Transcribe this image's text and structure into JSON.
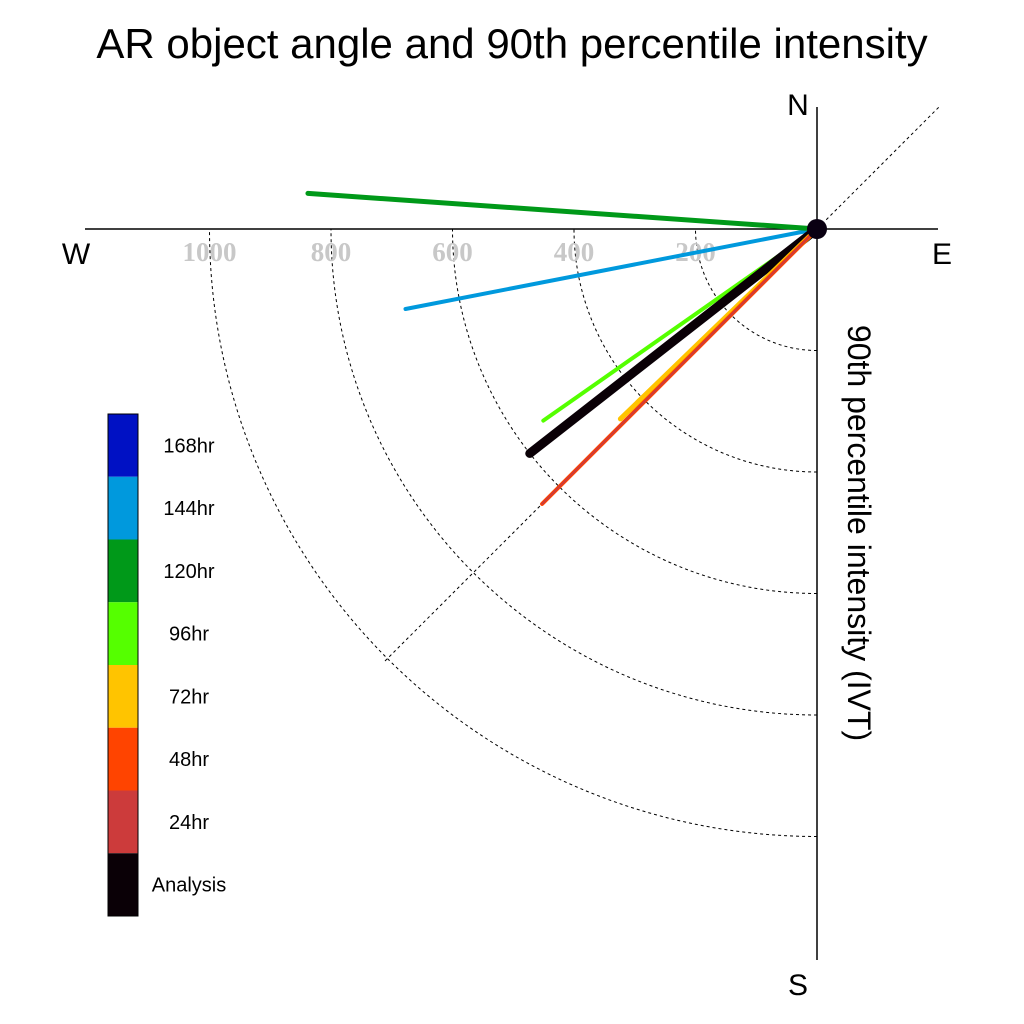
{
  "chart_data": {
    "type": "polar-line",
    "title": "AR object angle and 90th percentile intensity",
    "ylabel": "90th percentile intensity (IVT)",
    "compass": {
      "north": "N",
      "south": "S",
      "east": "E",
      "west": "W"
    },
    "radial_ticks": [
      200,
      400,
      600,
      800,
      1000
    ],
    "radial_tick_labels": [
      "200",
      "400",
      "600",
      "800",
      "1000"
    ],
    "radial_range": [
      0,
      1200
    ],
    "angle_convention": "degrees clockwise from north",
    "series": [
      {
        "name": "144hr",
        "color": "#0099dd",
        "angle_deg": 259,
        "intensity": 690,
        "width": 4
      },
      {
        "name": "120hr",
        "color": "#009919",
        "angle_deg": 274,
        "intensity": 840,
        "width": 5
      },
      {
        "name": "96hr",
        "color": "#55ff00",
        "angle_deg": 235,
        "intensity": 550,
        "width": 4
      },
      {
        "name": "Analysis",
        "color": "#0a0006",
        "angle_deg": 232,
        "intensity": 600,
        "width": 9
      },
      {
        "name": "72hr",
        "color": "#ffc400",
        "angle_deg": 226,
        "intensity": 450,
        "width": 5
      },
      {
        "name": "48hr",
        "color": "#ff4400",
        "angle_deg": 225,
        "intensity": 640,
        "width": 4
      },
      {
        "name": "24hr",
        "color": "#cc3b3b",
        "angle_deg": 225,
        "intensity": 640,
        "width": 2
      }
    ],
    "legend": [
      {
        "label": "168hr",
        "color": "#0011c4"
      },
      {
        "label": "144hr",
        "color": "#0099dd"
      },
      {
        "label": "120hr",
        "color": "#009919"
      },
      {
        "label": "96hr",
        "color": "#55ff00"
      },
      {
        "label": "72hr",
        "color": "#ffc400"
      },
      {
        "label": "48hr",
        "color": "#ff4400"
      },
      {
        "label": "24hr",
        "color": "#cc3b3b"
      },
      {
        "label": "Analysis",
        "color": "#0a0006"
      }
    ],
    "legend_position": "left",
    "grid": true
  }
}
